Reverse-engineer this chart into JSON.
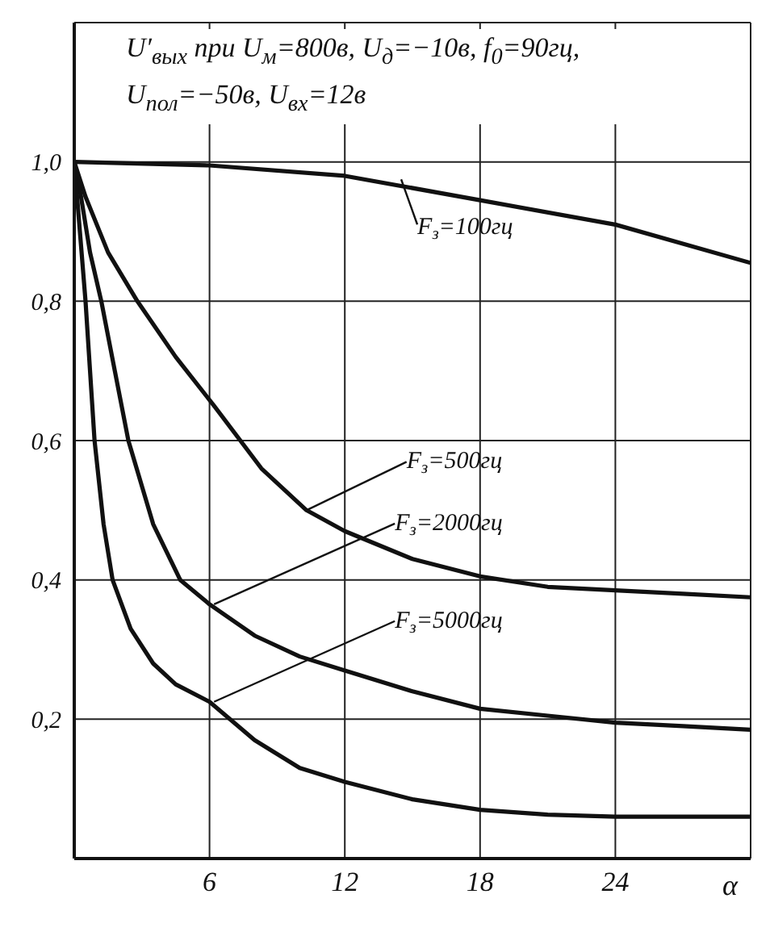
{
  "chart_data": {
    "type": "line",
    "title": "U′$_{вых}$ при U$_{м}$=800в, U$_{д}$=−10в, f$_{0}$=90гц, U$_{пол}$=−50в, U$_{вх}$=12в",
    "xlabel": "α",
    "xlim": [
      0,
      30
    ],
    "xticks": [
      6,
      12,
      18,
      24
    ],
    "ylim": [
      0,
      1.2
    ],
    "yticks": [
      {
        "value": 0.2,
        "label": "0,2"
      },
      {
        "value": 0.4,
        "label": "0,4"
      },
      {
        "value": 0.6,
        "label": "0,6"
      },
      {
        "value": 0.8,
        "label": "0,8"
      },
      {
        "value": 1.0,
        "label": "1,0"
      }
    ],
    "grid": true,
    "marker": "none",
    "line_style": "solid",
    "series": [
      {
        "color": "#111111",
        "x": [
          0,
          6,
          12,
          18,
          24,
          30
        ],
        "values": [
          1.0,
          0.995,
          0.98,
          0.945,
          0.91,
          0.855
        ]
      },
      {
        "color": "#111111",
        "x": [
          0,
          0.5,
          1.5,
          2.8,
          4.5,
          6.2,
          8.3,
          10.3,
          12,
          15,
          18,
          21,
          24,
          27,
          30
        ],
        "values": [
          1.0,
          0.95,
          0.87,
          0.8,
          0.72,
          0.65,
          0.56,
          0.5,
          0.47,
          0.43,
          0.405,
          0.39,
          0.385,
          0.38,
          0.375
        ]
      },
      {
        "color": "#111111",
        "x": [
          0,
          0.3,
          0.7,
          1.2,
          1.8,
          2.4,
          3.5,
          4.7,
          6,
          8,
          10,
          12,
          15,
          18,
          21,
          24,
          27,
          30
        ],
        "values": [
          1.0,
          0.95,
          0.87,
          0.8,
          0.7,
          0.6,
          0.48,
          0.4,
          0.365,
          0.32,
          0.29,
          0.27,
          0.24,
          0.215,
          0.205,
          0.195,
          0.19,
          0.185
        ]
      },
      {
        "color": "#111111",
        "x": [
          0,
          0.2,
          0.5,
          0.9,
          1.3,
          1.7,
          2.5,
          3.5,
          4.5,
          6,
          8,
          10,
          12,
          15,
          18,
          21,
          24,
          27,
          30
        ],
        "values": [
          1.0,
          0.92,
          0.8,
          0.6,
          0.48,
          0.4,
          0.33,
          0.28,
          0.25,
          0.225,
          0.17,
          0.13,
          0.11,
          0.085,
          0.07,
          0.063,
          0.06,
          0.06,
          0.06
        ]
      }
    ],
    "annotations": [
      {
        "text": "F$_{з}$=100гц",
        "x": 14.5,
        "y": 0.975
      },
      {
        "text": "F$_{з}$=500гц",
        "x": 10.3,
        "y": 0.5
      },
      {
        "text": "F$_{з}$=2000гц",
        "x": 6.2,
        "y": 0.365
      },
      {
        "text": "F$_{з}$=5000гц",
        "x": 6.2,
        "y": 0.225
      }
    ]
  }
}
